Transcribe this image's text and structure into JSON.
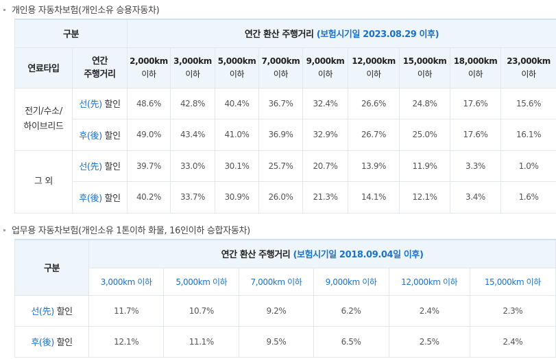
{
  "section1": {
    "title": "개인용 자동차보험(개인소유 승용자동차)",
    "header_group": "구분",
    "header_title": "연간 환산 주행거리",
    "header_note": "(보험시기일 2023.08.29 이후)",
    "col_fuel": "연료타입",
    "col_distance": "연간\n주행거리",
    "distances": [
      {
        "km": "2,000km",
        "suffix": "이하"
      },
      {
        "km": "3,000km",
        "suffix": "이하"
      },
      {
        "km": "5,000km",
        "suffix": "이하"
      },
      {
        "km": "7,000km",
        "suffix": "이하"
      },
      {
        "km": "9,000km",
        "suffix": "이하"
      },
      {
        "km": "12,000km",
        "suffix": "이하"
      },
      {
        "km": "15,000km",
        "suffix": "이하"
      },
      {
        "km": "18,000km",
        "suffix": "이하"
      },
      {
        "km": "23,000km",
        "suffix": "이하"
      }
    ],
    "groups": [
      {
        "label_line1": "전기/수소/",
        "label_line2": "하이브리드",
        "rows": [
          {
            "prefix": "선(先)",
            "suffix": " 할인",
            "values": [
              "48.6%",
              "42.8%",
              "40.4%",
              "36.7%",
              "32.4%",
              "26.6%",
              "24.8%",
              "17.6%",
              "15.6%"
            ]
          },
          {
            "prefix": "후(後)",
            "suffix": " 할인",
            "values": [
              "49.0%",
              "43.4%",
              "41.0%",
              "36.9%",
              "32.9%",
              "26.7%",
              "25.0%",
              "17.6%",
              "16.1%"
            ]
          }
        ]
      },
      {
        "label_line1": "그 외",
        "label_line2": "",
        "rows": [
          {
            "prefix": "선(先)",
            "suffix": " 할인",
            "values": [
              "39.7%",
              "33.0%",
              "30.1%",
              "25.7%",
              "20.7%",
              "13.9%",
              "11.9%",
              "3.3%",
              "1.0%"
            ]
          },
          {
            "prefix": "후(後)",
            "suffix": " 할인",
            "values": [
              "40.2%",
              "33.7%",
              "30.9%",
              "26.0%",
              "21.3%",
              "14.1%",
              "12.1%",
              "3.4%",
              "1.6%"
            ]
          }
        ]
      }
    ]
  },
  "section2": {
    "title": "업무용 자동차보험(개인소유 1톤이하 화물, 16인이하 승합자동차)",
    "header_group": "구분",
    "header_title": "연간 환산 주행거리",
    "header_note": "(보험시기일 2018.09.04일 이후)",
    "distances": [
      "3,000km 이하",
      "5,000km 이하",
      "7,000km 이하",
      "9,000km 이하",
      "12,000km 이하",
      "15,000km 이하"
    ],
    "rows": [
      {
        "prefix": "선(先)",
        "suffix": " 할인",
        "values": [
          "11.7%",
          "10.7%",
          "9.2%",
          "6.2%",
          "2.4%",
          "2.3%"
        ]
      },
      {
        "prefix": "후(後)",
        "suffix": " 할인",
        "values": [
          "12.1%",
          "11.1%",
          "9.5%",
          "6.5%",
          "2.5%",
          "2.4%"
        ]
      }
    ]
  }
}
